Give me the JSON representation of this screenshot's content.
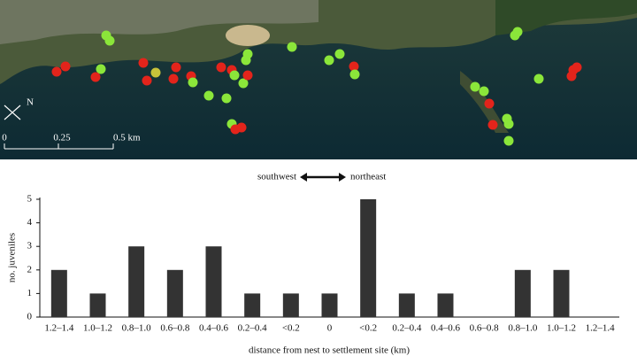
{
  "map": {
    "north": "N",
    "scale_labels": [
      "0",
      "0.25",
      "0.5 km"
    ]
  },
  "chart_data": {
    "type": "bar",
    "annotations": [
      "southwest",
      "northeast"
    ],
    "categories": [
      "1.2–1.4",
      "1.0–1.2",
      "0.8–1.0",
      "0.6–0.8",
      "0.4–0.6",
      "0.2–0.4",
      "<0.2",
      "0",
      "<0.2",
      "0.2–0.4",
      "0.4–0.6",
      "0.6–0.8",
      "0.8–1.0",
      "1.0–1.2",
      "1.2–1.4"
    ],
    "values": [
      2,
      1,
      3,
      2,
      3,
      1,
      1,
      1,
      5,
      1,
      1,
      0,
      2,
      2,
      0
    ],
    "color": "#333333",
    "xlabel": "distance from nest to settlement site (km)",
    "ylabel": "no. juveniles",
    "ylim": [
      0,
      5
    ],
    "yticks": [
      0,
      1,
      2,
      3,
      4,
      5
    ],
    "grid": false
  }
}
